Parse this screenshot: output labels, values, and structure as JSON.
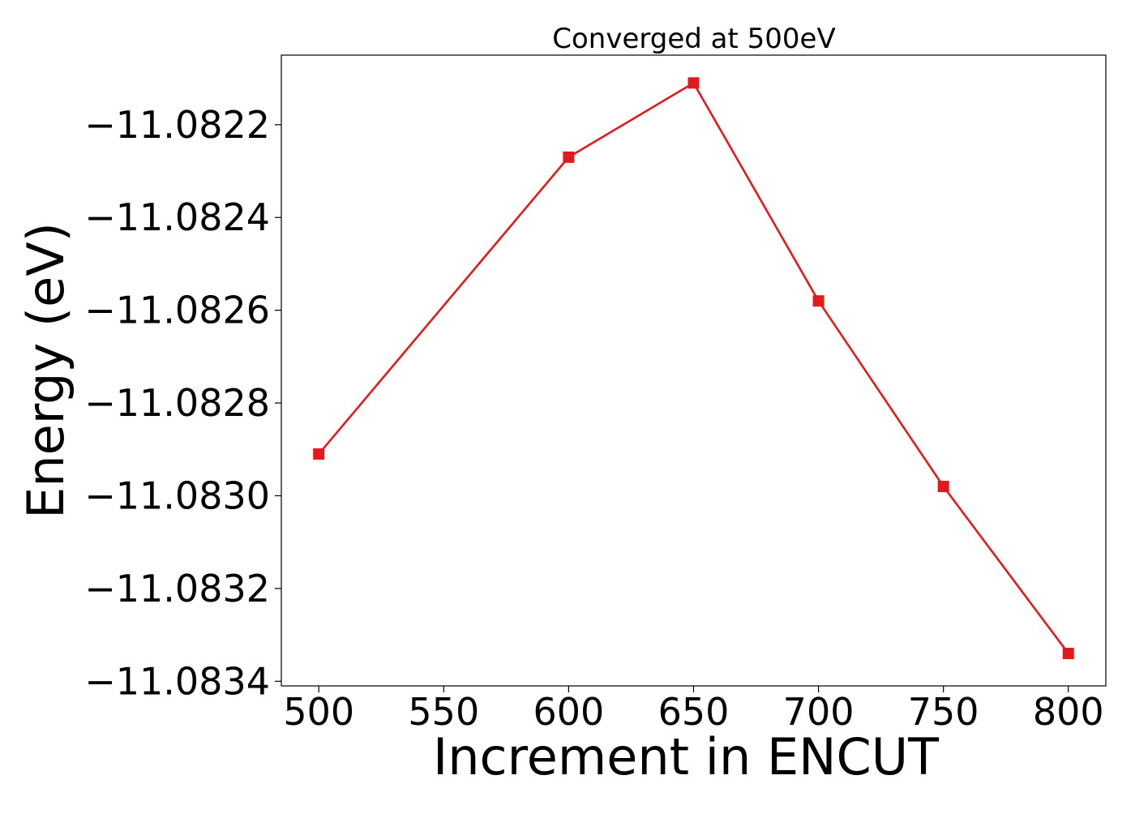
{
  "chart_data": {
    "type": "line",
    "title": "Converged at 500eV",
    "xlabel": "Increment in ENCUT",
    "ylabel": "Energy (eV)",
    "x": [
      500,
      600,
      650,
      700,
      750,
      800
    ],
    "xlim": [
      485,
      815
    ],
    "ylim": [
      -11.08341,
      -11.08205
    ],
    "xticks": [
      500,
      550,
      600,
      650,
      700,
      750,
      800
    ],
    "xtick_labels": [
      "500",
      "550",
      "600",
      "650",
      "700",
      "750",
      "800"
    ],
    "yticks": [
      -11.0822,
      -11.0824,
      -11.0826,
      -11.0828,
      -11.083,
      -11.0832,
      -11.0834
    ],
    "ytick_labels": [
      "−11.0822",
      "−11.0824",
      "−11.0826",
      "−11.0828",
      "−11.0830",
      "−11.0832",
      "−11.0834"
    ],
    "grid": false,
    "series": [
      {
        "values": [
          -11.08291,
          -11.08227,
          -11.08211,
          -11.08258,
          -11.08298,
          -11.08334
        ],
        "color": "#e31a1c",
        "marker": "square"
      }
    ]
  }
}
